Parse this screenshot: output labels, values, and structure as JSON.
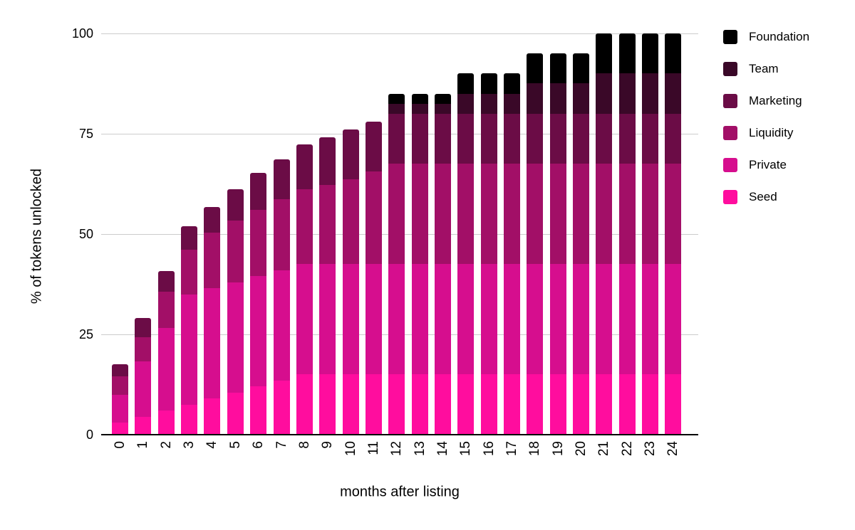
{
  "chart_data": {
    "type": "bar",
    "stacked": true,
    "title": "",
    "xlabel": "months after listing",
    "ylabel": "% of tokens unlocked",
    "x": [
      0,
      1,
      2,
      3,
      4,
      5,
      6,
      7,
      8,
      9,
      10,
      11,
      12,
      13,
      14,
      15,
      16,
      17,
      18,
      19,
      20,
      21,
      22,
      23,
      24
    ],
    "ylim": [
      0,
      100
    ],
    "yticks": [
      0,
      25,
      50,
      75,
      100
    ],
    "grid": "horizontal-only",
    "legend_position": "right",
    "legend_order_top_to_bottom": [
      "Foundation",
      "Team",
      "Marketing",
      "Liquidity",
      "Private",
      "Seed"
    ],
    "series": [
      {
        "name": "Seed",
        "color": "#FF0D9E",
        "values": [
          3,
          4.5,
          6,
          7.5,
          9,
          10.5,
          12,
          13.5,
          15,
          15,
          15,
          15,
          15,
          15,
          15,
          15,
          15,
          15,
          15,
          15,
          15,
          15,
          15,
          15,
          15
        ]
      },
      {
        "name": "Private",
        "color": "#D60E8E",
        "values": [
          6.9,
          13.8,
          20.6,
          27.5,
          27.5,
          27.5,
          27.5,
          27.5,
          27.5,
          27.5,
          27.5,
          27.5,
          27.5,
          27.5,
          27.5,
          27.5,
          27.5,
          27.5,
          27.5,
          27.5,
          27.5,
          27.5,
          27.5,
          27.5,
          27.5
        ]
      },
      {
        "name": "Liquidity",
        "color": "#A20F67",
        "values": [
          4.6,
          5.9,
          9,
          11.1,
          13.8,
          15.4,
          16.6,
          17.7,
          18.7,
          19.8,
          21.1,
          23.1,
          25,
          25,
          25,
          25,
          25,
          25,
          25,
          25,
          25,
          25,
          25,
          25,
          25
        ]
      },
      {
        "name": "Marketing",
        "color": "#6B0C46",
        "values": [
          3.1,
          4.8,
          5.2,
          5.8,
          6.4,
          7.8,
          9.2,
          9.9,
          11.1,
          11.9,
          12.5,
          12.5,
          12.5,
          12.5,
          12.5,
          12.5,
          12.5,
          12.5,
          12.5,
          12.5,
          12.5,
          12.5,
          12.5,
          12.5,
          12.5
        ]
      },
      {
        "name": "Team",
        "color": "#3A0828",
        "values": [
          0,
          0,
          0,
          0,
          0,
          0,
          0,
          0,
          0,
          0,
          0,
          0,
          2.5,
          2.5,
          2.5,
          5,
          5,
          5,
          7.5,
          7.5,
          7.5,
          10,
          10,
          10,
          10
        ]
      },
      {
        "name": "Foundation",
        "color": "#000000",
        "values": [
          0,
          0,
          0,
          0,
          0,
          0,
          0,
          0,
          0,
          0,
          0,
          0,
          2.5,
          2.5,
          2.5,
          5,
          5,
          5,
          7.5,
          7.5,
          7.5,
          10,
          10,
          10,
          10
        ]
      }
    ],
    "totals_by_month": [
      17.6,
      29,
      40.8,
      51.9,
      56.7,
      61.2,
      65.3,
      68.6,
      72.3,
      74.2,
      76.1,
      78.1,
      85,
      85,
      85,
      90,
      90,
      90,
      95,
      95,
      95,
      100,
      100,
      100,
      100
    ]
  },
  "style_colors": {
    "gridline": "#cccccc",
    "axis_line": "#000000",
    "text": "#000000",
    "background": "#ffffff"
  }
}
